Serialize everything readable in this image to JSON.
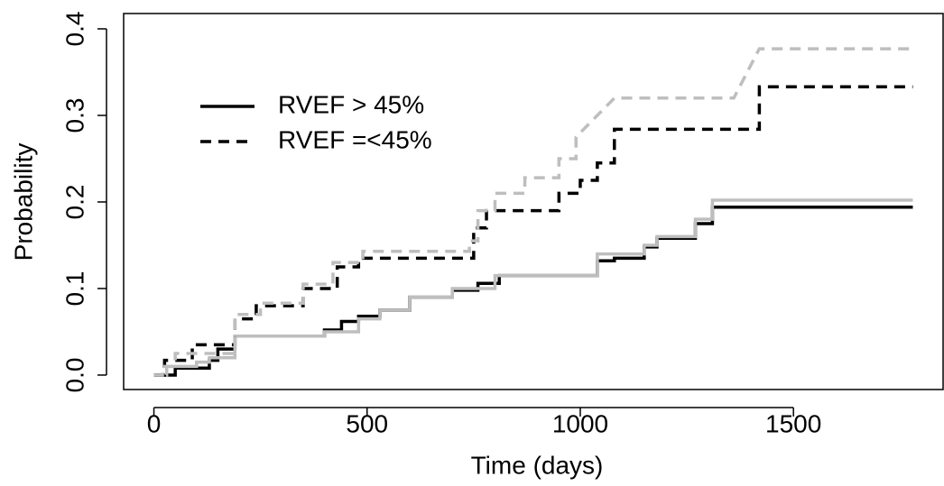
{
  "chart_data": {
    "type": "line",
    "step": true,
    "xlabel": "Time (days)",
    "ylabel": "Probability",
    "xlim": [
      -71,
      1851
    ],
    "ylim": [
      -0.0167,
      0.4177
    ],
    "xticks": [
      0,
      500,
      1000,
      1500
    ],
    "yticks": [
      {
        "value": 0,
        "label": "0.0"
      },
      0.1,
      0.2,
      0.3,
      0.4
    ],
    "legend": "top left",
    "series": [
      {
        "name": "RVEF > 45%",
        "color": "#000000",
        "dash": false,
        "x": [
          0,
          50,
          50,
          130,
          130,
          150,
          150,
          190,
          190,
          400,
          400,
          440,
          440,
          480,
          480,
          530,
          530,
          600,
          600,
          700,
          700,
          760,
          760,
          810,
          810,
          1040,
          1040,
          1080,
          1080,
          1150,
          1150,
          1180,
          1180,
          1270,
          1270,
          1310,
          1310,
          1780
        ],
        "values": [
          0,
          0,
          0.008,
          0.008,
          0.017,
          0.017,
          0.03,
          0.03,
          0.045,
          0.045,
          0.052,
          0.052,
          0.062,
          0.062,
          0.068,
          0.068,
          0.075,
          0.075,
          0.09,
          0.09,
          0.098,
          0.098,
          0.106,
          0.106,
          0.115,
          0.115,
          0.132,
          0.132,
          0.135,
          0.135,
          0.148,
          0.148,
          0.158,
          0.158,
          0.175,
          0.175,
          0.194,
          0.194
        ]
      },
      {
        "color": "#bebebe",
        "dash": false,
        "x": [
          0,
          30,
          30,
          100,
          100,
          130,
          130,
          190,
          190,
          400,
          400,
          480,
          480,
          530,
          530,
          600,
          600,
          700,
          700,
          800,
          800,
          1040,
          1040,
          1150,
          1150,
          1180,
          1180,
          1270,
          1270,
          1310,
          1310,
          1780
        ],
        "values": [
          0,
          0,
          0.01,
          0.01,
          0.015,
          0.015,
          0.02,
          0.02,
          0.045,
          0.045,
          0.05,
          0.05,
          0.065,
          0.065,
          0.075,
          0.075,
          0.09,
          0.09,
          0.1,
          0.1,
          0.115,
          0.115,
          0.14,
          0.14,
          0.15,
          0.15,
          0.16,
          0.16,
          0.18,
          0.18,
          0.202,
          0.202
        ]
      },
      {
        "name": "RVEF =<45%",
        "color": "#000000",
        "dash": true,
        "x": [
          0,
          25,
          25,
          90,
          90,
          190,
          190,
          240,
          240,
          350,
          350,
          430,
          430,
          480,
          480,
          750,
          750,
          780,
          780,
          950,
          950,
          1000,
          1000,
          1040,
          1040,
          1080,
          1080,
          1420,
          1420,
          1780
        ],
        "values": [
          0,
          0,
          0.017,
          0.017,
          0.035,
          0.035,
          0.065,
          0.065,
          0.08,
          0.08,
          0.1,
          0.1,
          0.125,
          0.125,
          0.135,
          0.135,
          0.17,
          0.17,
          0.19,
          0.19,
          0.21,
          0.21,
          0.225,
          0.225,
          0.245,
          0.245,
          0.284,
          0.284,
          0.333,
          0.333
        ]
      },
      {
        "color": "#bebebe",
        "dash": true,
        "x": [
          0,
          20,
          20,
          50,
          50,
          190,
          190,
          250,
          250,
          350,
          350,
          420,
          420,
          490,
          490,
          740,
          740,
          760,
          760,
          800,
          800,
          870,
          870,
          950,
          950,
          990,
          990,
          1080,
          1360,
          1420,
          1780
        ],
        "values": [
          0,
          0,
          0.01,
          0.01,
          0.025,
          0.025,
          0.07,
          0.07,
          0.083,
          0.083,
          0.105,
          0.105,
          0.13,
          0.13,
          0.143,
          0.143,
          0.155,
          0.155,
          0.19,
          0.19,
          0.21,
          0.21,
          0.228,
          0.228,
          0.25,
          0.25,
          0.275,
          0.32,
          0.32,
          0.377,
          0.377
        ]
      }
    ]
  }
}
